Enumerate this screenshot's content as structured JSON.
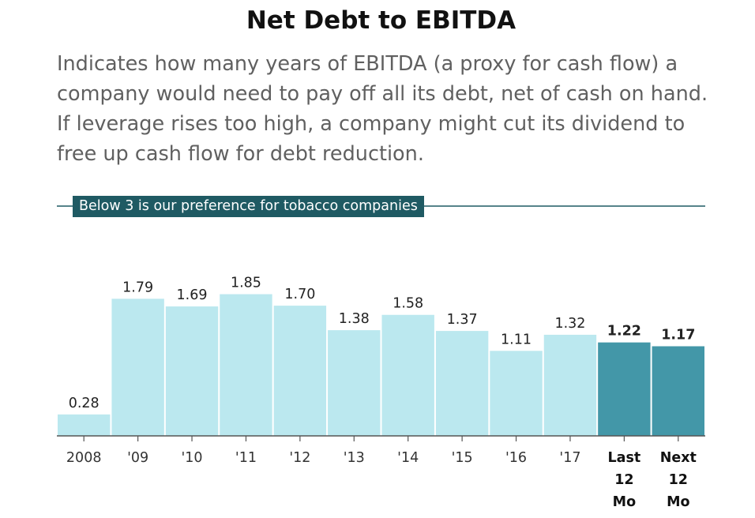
{
  "header": {
    "title": "Net Debt to EBITDA",
    "subtitle": "Indicates how many years of EBITDA (a proxy for cash flow) a company would need to pay off all its debt, net of cash on hand. If leverage rises too high, a company might cut its dividend to free up cash flow for debt reduction."
  },
  "annotation": {
    "label": "Below 3 is our preference for tobacco companies"
  },
  "colors": {
    "historical_bar": "#bbe8ef",
    "projected_bar": "#4397a8",
    "threshold_line": "#1f5a63",
    "axis": "#555555"
  },
  "chart_data": {
    "type": "bar",
    "title": "Net Debt to EBITDA",
    "categories": [
      "2008",
      "'09",
      "'10",
      "'11",
      "'12",
      "'13",
      "'14",
      "'15",
      "'16",
      "'17",
      "Last 12 Mo",
      "Next 12 Mo"
    ],
    "category_lines": [
      [
        "2008"
      ],
      [
        "'09"
      ],
      [
        "'10"
      ],
      [
        "'11"
      ],
      [
        "'12"
      ],
      [
        "'13"
      ],
      [
        "'14"
      ],
      [
        "'15"
      ],
      [
        "'16"
      ],
      [
        "'17"
      ],
      [
        "Last",
        "12",
        "Mo"
      ],
      [
        "Next",
        "12",
        "Mo"
      ]
    ],
    "values": [
      0.28,
      1.79,
      1.69,
      1.85,
      1.7,
      1.38,
      1.58,
      1.37,
      1.11,
      1.32,
      1.22,
      1.17
    ],
    "value_labels": [
      "0.28",
      "1.79",
      "1.69",
      "1.85",
      "1.70",
      "1.38",
      "1.58",
      "1.37",
      "1.11",
      "1.32",
      "1.22",
      "1.17"
    ],
    "highlighted": [
      false,
      false,
      false,
      false,
      false,
      false,
      false,
      false,
      false,
      false,
      true,
      true
    ],
    "reference_line": {
      "value": 3,
      "label": "Below 3 is our preference for tobacco companies"
    },
    "ylim": [
      0,
      3
    ],
    "grid": false
  }
}
